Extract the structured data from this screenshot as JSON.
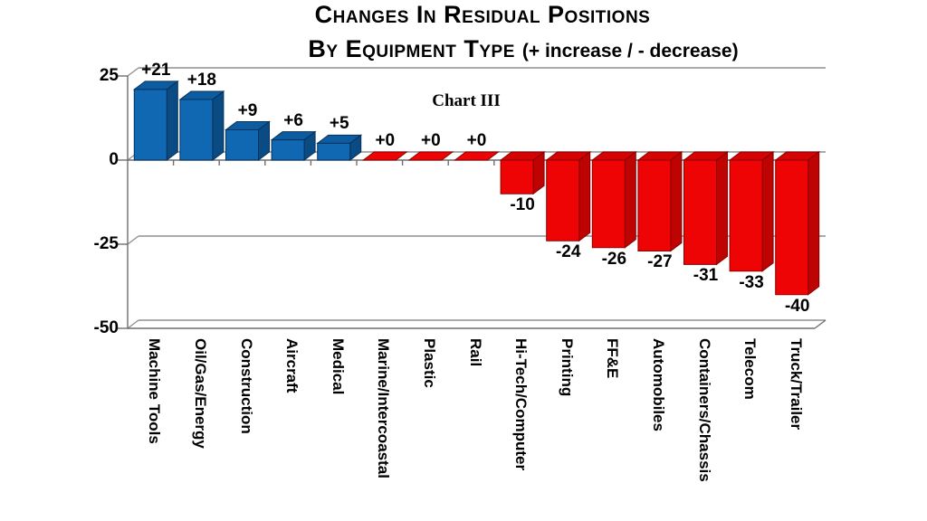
{
  "title": {
    "line1": "Changes In Residual Positions",
    "line2_smallcaps": "By Equipment Type",
    "line2_rest": "(+ increase / - decrease)"
  },
  "annotation": "Chart III",
  "chart_data": {
    "type": "bar",
    "style": "3d-column",
    "title": "Changes in Residual Positions by Equipment Type (+ increase / - decrease)",
    "annotation": "Chart III",
    "grid": true,
    "legend": false,
    "ylim": [
      -50,
      25
    ],
    "y_ticks": [
      {
        "label": "25",
        "value": 25
      },
      {
        "label": "0",
        "value": 0
      },
      {
        "label": "-25",
        "value": -25
      },
      {
        "label": "-50",
        "value": -50
      }
    ],
    "bars": [
      {
        "category": "Machine Tools",
        "value": 21,
        "label": "+21",
        "color": "blue"
      },
      {
        "category": "Oil/Gas/Energy",
        "value": 18,
        "label": "+18",
        "color": "blue"
      },
      {
        "category": "Construction",
        "value": 9,
        "label": "+9",
        "color": "blue"
      },
      {
        "category": "Aircraft",
        "value": 6,
        "label": "+6",
        "color": "blue"
      },
      {
        "category": "Medical",
        "value": 5,
        "label": "+5",
        "color": "blue"
      },
      {
        "category": "Marine/Intercoastal",
        "value": 0,
        "label": "+0",
        "color": "red"
      },
      {
        "category": "Plastic",
        "value": 0,
        "label": "+0",
        "color": "red"
      },
      {
        "category": "Rail",
        "value": 0,
        "label": "+0",
        "color": "red"
      },
      {
        "category": "Hi-Tech/Computer",
        "value": -10,
        "label": "-10",
        "color": "red"
      },
      {
        "category": "Printing",
        "value": -24,
        "label": "-24",
        "color": "red"
      },
      {
        "category": "FF&E",
        "value": -26,
        "label": "-26",
        "color": "red"
      },
      {
        "category": "Automobiles",
        "value": -27,
        "label": "-27",
        "color": "red"
      },
      {
        "category": "Containers/Chassis",
        "value": -31,
        "label": "-31",
        "color": "red"
      },
      {
        "category": "Telecom",
        "value": -33,
        "label": "-33",
        "color": "red"
      },
      {
        "category": "Truck/Trailer",
        "value": -40,
        "label": "-40",
        "color": "red"
      }
    ],
    "colors": {
      "blue": {
        "front": "#1068B2",
        "top": "#0D5CA0",
        "side": "#094B82",
        "outline": "#05315C"
      },
      "red": {
        "front": "#EE0404",
        "top": "#D40404",
        "side": "#BE0303",
        "outline": "#8A0000"
      },
      "gridline": "#8F8F8F",
      "axis": "#6E6E6E",
      "text": "#000000"
    }
  }
}
